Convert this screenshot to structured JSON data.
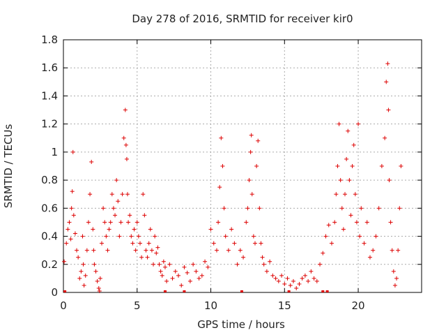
{
  "chart_data": {
    "type": "scatter",
    "title": "Day 278 of 2016, SRMTID for receiver kir0",
    "xlabel": "GPS time / hours",
    "ylabel": "SRMTID / TECUs",
    "xlim": [
      0,
      24.3
    ],
    "ylim": [
      0,
      1.8
    ],
    "xticks": [
      0,
      5,
      10,
      15,
      20
    ],
    "yticks": [
      0,
      0.2,
      0.4,
      0.6,
      0.8,
      1,
      1.2,
      1.4,
      1.6,
      1.8
    ],
    "ytick_labels": [
      "0",
      "0.2",
      "0.4",
      "0.6",
      "0.8",
      "1",
      "1.2",
      "1.4",
      "1.6",
      "1.8"
    ],
    "grid": true,
    "marker": "+",
    "color": "#dd0000",
    "series": [
      {
        "name": "SRMTID",
        "x": [
          0.05,
          0.2,
          0.3,
          0.4,
          0.5,
          0.55,
          0.6,
          0.65,
          0.7,
          0.8,
          0.9,
          1.0,
          1.1,
          1.2,
          1.3,
          1.35,
          1.4,
          1.5,
          1.6,
          1.7,
          1.8,
          1.9,
          2.0,
          2.05,
          2.1,
          2.2,
          2.3,
          2.4,
          2.45,
          2.5,
          2.6,
          2.7,
          2.8,
          2.9,
          3.0,
          3.1,
          3.2,
          3.3,
          3.4,
          3.5,
          3.6,
          3.7,
          3.8,
          3.9,
          4.0,
          4.1,
          4.2,
          4.25,
          4.3,
          4.35,
          4.4,
          4.5,
          4.6,
          4.7,
          4.8,
          4.9,
          5.0,
          5.1,
          5.2,
          5.3,
          5.4,
          5.5,
          5.6,
          5.7,
          5.8,
          5.9,
          6.0,
          6.1,
          6.2,
          6.3,
          6.4,
          6.5,
          6.6,
          6.7,
          6.8,
          6.9,
          7.0,
          7.2,
          7.4,
          7.6,
          7.8,
          8.0,
          8.2,
          8.4,
          8.6,
          8.8,
          9.0,
          9.2,
          9.4,
          9.6,
          9.8,
          10.0,
          10.2,
          10.4,
          10.5,
          10.6,
          10.7,
          10.8,
          10.9,
          11.0,
          11.2,
          11.4,
          11.6,
          11.8,
          12.0,
          12.2,
          12.4,
          12.5,
          12.6,
          12.7,
          12.75,
          12.8,
          12.9,
          13.0,
          13.1,
          13.2,
          13.3,
          13.4,
          13.5,
          13.6,
          13.8,
          14.0,
          14.2,
          14.4,
          14.6,
          14.8,
          15.0,
          15.2,
          15.4,
          15.6,
          15.8,
          16.0,
          16.2,
          16.4,
          16.6,
          16.8,
          17.0,
          17.2,
          17.4,
          17.6,
          17.8,
          18.0,
          18.2,
          18.4,
          18.5,
          18.6,
          18.7,
          18.8,
          18.9,
          19.0,
          19.1,
          19.2,
          19.3,
          19.4,
          19.5,
          19.6,
          19.7,
          19.8,
          19.9,
          20.0,
          20.1,
          20.2,
          20.4,
          20.6,
          20.8,
          21.0,
          21.2,
          21.4,
          21.6,
          21.8,
          21.9,
          22.0,
          22.05,
          22.1,
          22.2,
          22.3,
          22.4,
          22.5,
          22.6,
          22.7,
          22.8,
          22.9
        ],
        "y": [
          0.22,
          0.35,
          0.45,
          0.5,
          0.38,
          0.6,
          0.72,
          1.0,
          0.55,
          0.42,
          0.3,
          0.25,
          0.1,
          0.15,
          0.4,
          0.2,
          0.05,
          0.12,
          0.3,
          0.5,
          0.7,
          0.93,
          0.45,
          0.3,
          0.2,
          0.15,
          0.08,
          0.03,
          0.01,
          0.1,
          0.35,
          0.6,
          0.5,
          0.4,
          0.3,
          0.45,
          0.5,
          0.7,
          0.6,
          0.55,
          0.8,
          0.65,
          0.4,
          0.5,
          0.7,
          1.1,
          1.3,
          1.05,
          0.95,
          0.7,
          0.5,
          0.55,
          0.4,
          0.35,
          0.45,
          0.3,
          0.5,
          0.4,
          0.35,
          0.25,
          0.7,
          0.55,
          0.3,
          0.25,
          0.35,
          0.45,
          0.3,
          0.2,
          0.4,
          0.28,
          0.32,
          0.2,
          0.15,
          0.12,
          0.22,
          0.18,
          0.08,
          0.2,
          0.1,
          0.15,
          0.12,
          0.05,
          0.18,
          0.14,
          0.08,
          0.2,
          0.15,
          0.1,
          0.12,
          0.22,
          0.18,
          0.45,
          0.35,
          0.3,
          0.5,
          0.75,
          1.1,
          0.9,
          0.6,
          0.4,
          0.3,
          0.45,
          0.35,
          0.2,
          0.3,
          0.25,
          0.5,
          0.6,
          0.8,
          1.0,
          1.12,
          0.7,
          0.4,
          0.35,
          0.9,
          1.08,
          0.6,
          0.35,
          0.25,
          0.2,
          0.15,
          0.22,
          0.12,
          0.1,
          0.08,
          0.12,
          0.06,
          0.1,
          0.05,
          0.08,
          0.03,
          0.06,
          0.1,
          0.12,
          0.08,
          0.15,
          0.1,
          0.08,
          0.2,
          0.28,
          0.4,
          0.48,
          0.35,
          0.5,
          0.7,
          0.9,
          1.2,
          0.8,
          0.6,
          0.45,
          0.7,
          0.95,
          1.15,
          0.8,
          0.55,
          0.9,
          1.05,
          0.7,
          0.5,
          1.2,
          0.4,
          0.6,
          0.35,
          0.5,
          0.25,
          0.3,
          0.4,
          0.6,
          0.9,
          1.1,
          1.5,
          1.63,
          1.3,
          0.8,
          0.5,
          0.3,
          0.15,
          0.05,
          0.1,
          0.3,
          0.6,
          0.9
        ]
      }
    ],
    "baseline_marker_x": [
      0.1,
      6.9,
      8.2,
      12.1,
      15.3,
      17.6,
      17.9
    ]
  }
}
